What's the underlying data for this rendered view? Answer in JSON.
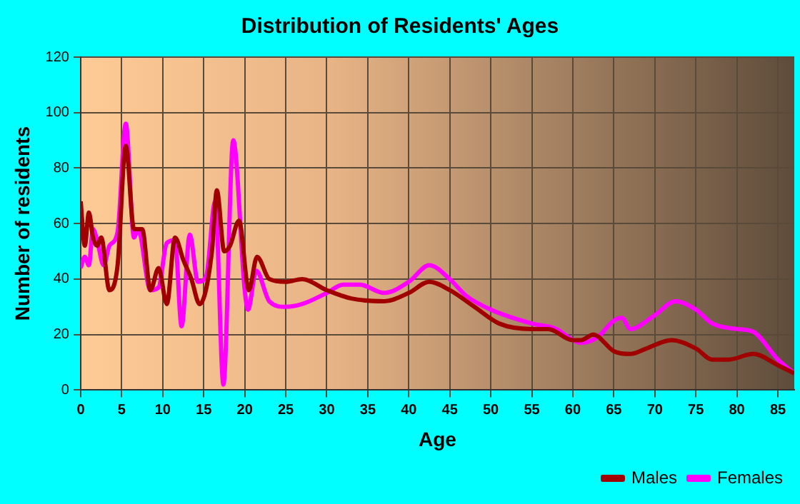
{
  "chart_data": {
    "type": "line",
    "title": "Distribution of Residents' Ages",
    "xlabel": "Age",
    "ylabel": "Number of residents",
    "xlim": [
      0,
      87
    ],
    "xticks": [
      0,
      5,
      10,
      15,
      20,
      25,
      30,
      35,
      40,
      45,
      50,
      55,
      60,
      65,
      70,
      75,
      80,
      85
    ],
    "ylim": [
      0,
      120
    ],
    "yticks": [
      0,
      20,
      40,
      60,
      80,
      100,
      120
    ],
    "grid": true,
    "legend": "bottom right",
    "marker": "none",
    "line_style": "solid",
    "series": [
      {
        "name": "Males",
        "color": "#a00000",
        "x": [
          0,
          0.5,
          1,
          1.5,
          2,
          2.5,
          3.5,
          4.5,
          5.5,
          6.5,
          7.5,
          8.5,
          9.5,
          10.5,
          11.5,
          12.5,
          13.5,
          14.5,
          16,
          16.6,
          17.5,
          18.2,
          19.3,
          20.5,
          21.5,
          23,
          25,
          27,
          30,
          33,
          37,
          40,
          42.5,
          45,
          48,
          51,
          55,
          57,
          60,
          61,
          62.5,
          65,
          67,
          69,
          72,
          75,
          77,
          79,
          82,
          85,
          87
        ],
        "values": [
          68,
          52,
          64,
          55,
          52,
          55,
          36,
          45,
          88,
          58,
          58,
          36,
          44,
          31,
          55,
          47,
          40,
          31,
          50,
          72,
          50,
          52,
          61,
          36,
          48,
          40,
          39,
          40,
          36,
          33,
          32,
          35,
          39,
          36,
          30,
          24,
          22,
          22,
          18,
          18,
          20,
          14,
          13,
          15,
          18,
          15,
          11,
          11,
          13,
          9,
          6
        ]
      },
      {
        "name": "Females",
        "color": "#ff00ff",
        "x": [
          0,
          0.5,
          1,
          1.5,
          2,
          2.8,
          3.5,
          4.5,
          5.5,
          6.5,
          7,
          8.5,
          9.5,
          10.5,
          11.5,
          12.3,
          13.3,
          14.3,
          15.3,
          16.4,
          17.4,
          18.6,
          20,
          20.4,
          21.4,
          23,
          25,
          27,
          30,
          32,
          34,
          37,
          40,
          42.5,
          45,
          47,
          50,
          55,
          58,
          60,
          61,
          63,
          65,
          66,
          67,
          70,
          72.5,
          75,
          77,
          80,
          82,
          85,
          87
        ],
        "values": [
          44,
          48,
          45,
          58,
          54,
          45,
          52,
          57,
          96,
          55,
          58,
          36,
          37,
          53,
          54,
          23,
          56,
          39,
          41,
          68,
          2,
          90,
          36,
          29,
          43,
          32,
          30,
          31,
          35,
          38,
          38,
          35,
          39,
          45,
          40,
          34,
          29,
          24,
          22,
          18,
          17,
          19,
          25,
          26,
          22,
          27,
          32,
          29,
          24,
          22,
          21,
          11,
          6
        ]
      }
    ]
  }
}
